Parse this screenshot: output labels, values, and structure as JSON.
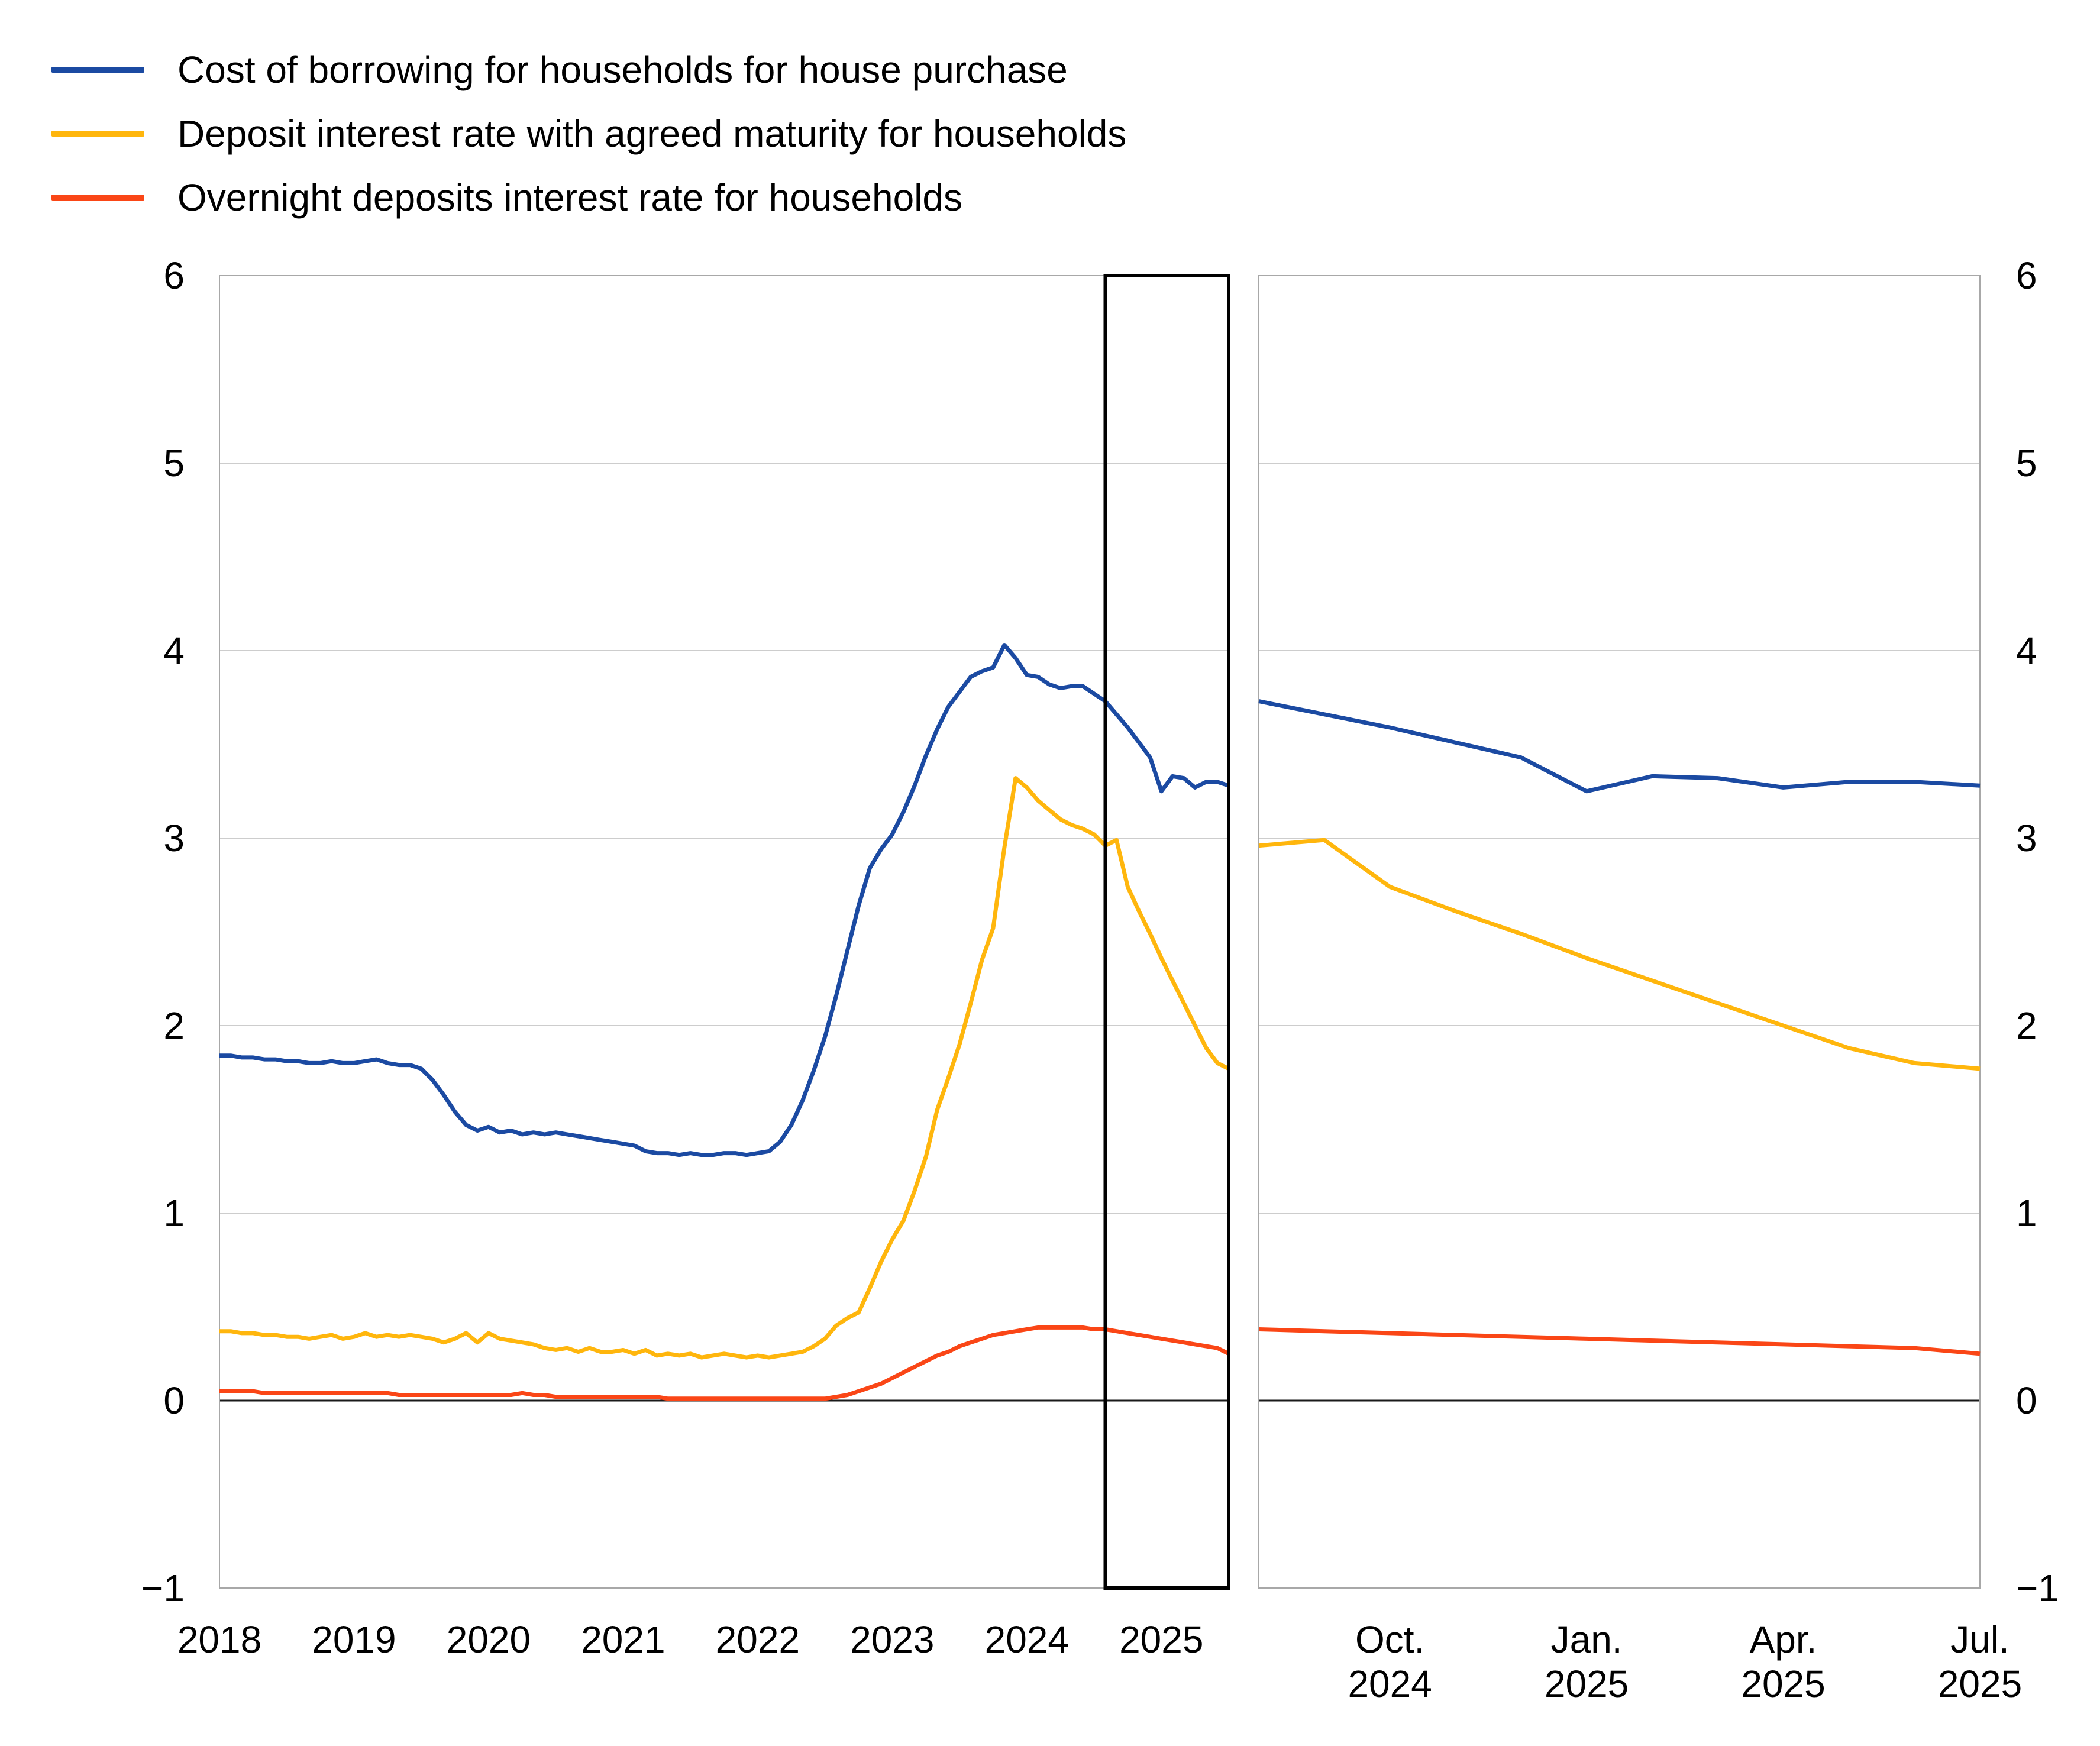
{
  "legend": {
    "items": [
      {
        "id": "cost-of-borrowing",
        "label": "Cost of borrowing for households for house purchase",
        "color": "#1b4aa2"
      },
      {
        "id": "deposit-agreed-maturity",
        "label": "Deposit interest rate with agreed maturity for households",
        "color": "#ffb60d"
      },
      {
        "id": "overnight-deposits",
        "label": "Overnight deposits interest rate for households",
        "color": "#fa4616"
      }
    ]
  },
  "chart_data": {
    "type": "line",
    "title": "",
    "xlabel": "",
    "ylabel": "",
    "grid": true,
    "y_axis": {
      "min": -1,
      "max": 6,
      "ticks": [
        6,
        5,
        4,
        3,
        2,
        1,
        0,
        -1
      ],
      "tick_labels": [
        "6",
        "5",
        "4",
        "3",
        "2",
        "1",
        "0",
        "−1"
      ],
      "shown_on": "both sides"
    },
    "colors": {
      "gridline": "#cdcdcd",
      "panel_border": "#a8a8a8",
      "zero_line": "#1a1a1a",
      "highlight_box": "#000000"
    },
    "panels": [
      {
        "id": "left",
        "frequency": "monthly",
        "x_start": "2018-01",
        "x_end": "2025-07",
        "x_ticks": [
          {
            "label": "2018",
            "month": 0
          },
          {
            "label": "2019",
            "month": 12
          },
          {
            "label": "2020",
            "month": 24
          },
          {
            "label": "2021",
            "month": 36
          },
          {
            "label": "2022",
            "month": 48
          },
          {
            "label": "2023",
            "month": 60
          },
          {
            "label": "2024",
            "month": 72
          },
          {
            "label": "2025",
            "month": 84
          }
        ],
        "highlight_box": {
          "from_month": 79,
          "to_month": 90,
          "start": "2024-08",
          "end": "2025-07"
        },
        "series": [
          {
            "name": "Cost of borrowing for households for house purchase",
            "color": "#1b4aa2",
            "values": [
              1.84,
              1.84,
              1.83,
              1.83,
              1.82,
              1.82,
              1.81,
              1.81,
              1.8,
              1.8,
              1.81,
              1.8,
              1.8,
              1.81,
              1.82,
              1.8,
              1.79,
              1.79,
              1.77,
              1.71,
              1.63,
              1.54,
              1.47,
              1.44,
              1.46,
              1.43,
              1.44,
              1.42,
              1.43,
              1.42,
              1.43,
              1.42,
              1.41,
              1.4,
              1.39,
              1.38,
              1.37,
              1.36,
              1.33,
              1.32,
              1.32,
              1.31,
              1.32,
              1.31,
              1.31,
              1.32,
              1.32,
              1.31,
              1.32,
              1.33,
              1.38,
              1.47,
              1.6,
              1.76,
              1.94,
              2.16,
              2.4,
              2.64,
              2.84,
              2.94,
              3.02,
              3.14,
              3.28,
              3.44,
              3.58,
              3.7,
              3.78,
              3.86,
              3.89,
              3.91,
              4.03,
              3.96,
              3.87,
              3.86,
              3.82,
              3.8,
              3.81,
              3.81,
              3.77,
              3.73,
              3.66,
              3.59,
              3.51,
              3.43,
              3.25,
              3.33,
              3.32,
              3.27,
              3.3,
              3.3,
              3.28
            ]
          },
          {
            "name": "Deposit interest rate with agreed maturity for households",
            "color": "#ffb60d",
            "values": [
              0.37,
              0.37,
              0.36,
              0.36,
              0.35,
              0.35,
              0.34,
              0.34,
              0.33,
              0.34,
              0.35,
              0.33,
              0.34,
              0.36,
              0.34,
              0.35,
              0.34,
              0.35,
              0.34,
              0.33,
              0.31,
              0.33,
              0.36,
              0.31,
              0.36,
              0.33,
              0.32,
              0.31,
              0.3,
              0.28,
              0.27,
              0.28,
              0.26,
              0.28,
              0.26,
              0.26,
              0.27,
              0.25,
              0.27,
              0.24,
              0.25,
              0.24,
              0.25,
              0.23,
              0.24,
              0.25,
              0.24,
              0.23,
              0.24,
              0.23,
              0.24,
              0.25,
              0.26,
              0.29,
              0.33,
              0.4,
              0.44,
              0.47,
              0.6,
              0.74,
              0.86,
              0.96,
              1.12,
              1.3,
              1.55,
              1.72,
              1.9,
              2.12,
              2.35,
              2.52,
              2.95,
              3.32,
              3.27,
              3.2,
              3.15,
              3.1,
              3.07,
              3.05,
              3.02,
              2.96,
              2.99,
              2.74,
              2.61,
              2.49,
              2.36,
              2.24,
              2.12,
              2.0,
              1.88,
              1.8,
              1.77
            ]
          },
          {
            "name": "Overnight deposits interest rate for households",
            "color": "#fa4616",
            "values": [
              0.05,
              0.05,
              0.05,
              0.05,
              0.04,
              0.04,
              0.04,
              0.04,
              0.04,
              0.04,
              0.04,
              0.04,
              0.04,
              0.04,
              0.04,
              0.04,
              0.03,
              0.03,
              0.03,
              0.03,
              0.03,
              0.03,
              0.03,
              0.03,
              0.03,
              0.03,
              0.03,
              0.04,
              0.03,
              0.03,
              0.02,
              0.02,
              0.02,
              0.02,
              0.02,
              0.02,
              0.02,
              0.02,
              0.02,
              0.02,
              0.01,
              0.01,
              0.01,
              0.01,
              0.01,
              0.01,
              0.01,
              0.01,
              0.01,
              0.01,
              0.01,
              0.01,
              0.01,
              0.01,
              0.01,
              0.02,
              0.03,
              0.05,
              0.07,
              0.09,
              0.12,
              0.15,
              0.18,
              0.21,
              0.24,
              0.26,
              0.29,
              0.31,
              0.33,
              0.35,
              0.36,
              0.37,
              0.38,
              0.39,
              0.39,
              0.39,
              0.39,
              0.39,
              0.38,
              0.38,
              0.37,
              0.36,
              0.35,
              0.34,
              0.33,
              0.32,
              0.31,
              0.3,
              0.29,
              0.28,
              0.25
            ]
          }
        ]
      },
      {
        "id": "right",
        "frequency": "monthly",
        "x_start": "2024-08",
        "x_end": "2025-07",
        "x_ticks": [
          {
            "line1": "Oct.",
            "line2": "2024",
            "month": 2
          },
          {
            "line1": "Jan.",
            "line2": "2025",
            "month": 5
          },
          {
            "line1": "Apr.",
            "line2": "2025",
            "month": 8
          },
          {
            "line1": "Jul.",
            "line2": "2025",
            "month": 11
          }
        ],
        "series": [
          {
            "name": "Cost of borrowing for households for house purchase",
            "color": "#1b4aa2",
            "values": [
              3.73,
              3.66,
              3.59,
              3.51,
              3.43,
              3.25,
              3.33,
              3.32,
              3.27,
              3.3,
              3.3,
              3.28
            ]
          },
          {
            "name": "Deposit interest rate with agreed maturity for households",
            "color": "#ffb60d",
            "values": [
              2.96,
              2.99,
              2.74,
              2.61,
              2.49,
              2.36,
              2.24,
              2.12,
              2.0,
              1.88,
              1.8,
              1.77
            ]
          },
          {
            "name": "Overnight deposits interest rate for households",
            "color": "#fa4616",
            "values": [
              0.38,
              0.37,
              0.36,
              0.35,
              0.34,
              0.33,
              0.32,
              0.31,
              0.3,
              0.29,
              0.28,
              0.25
            ]
          }
        ]
      }
    ]
  }
}
